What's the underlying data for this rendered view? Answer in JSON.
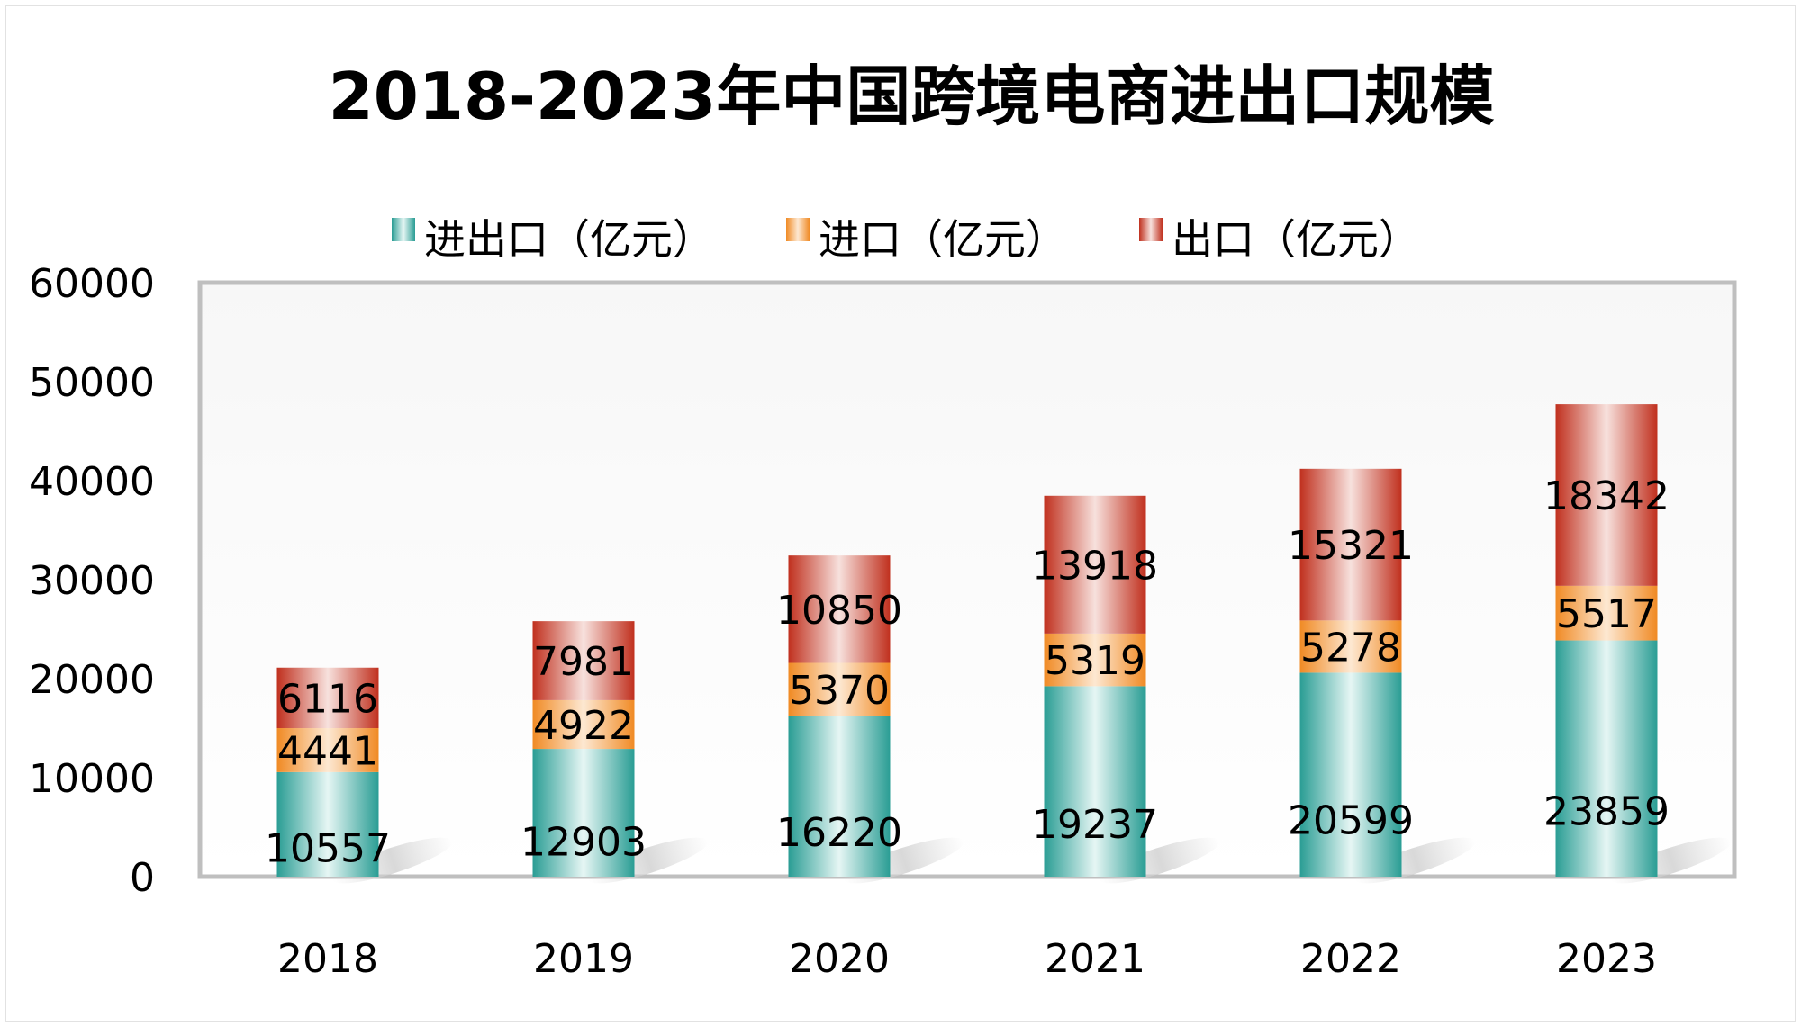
{
  "chart_data": {
    "type": "bar",
    "stacked": true,
    "title": "2018-2023年中国跨境电商进出口规模",
    "xlabel": "",
    "ylabel": "",
    "categories": [
      "2018",
      "2019",
      "2020",
      "2021",
      "2022",
      "2023"
    ],
    "ylim": [
      0,
      60000
    ],
    "yticks": [
      0,
      10000,
      20000,
      30000,
      40000,
      50000,
      60000
    ],
    "ytick_labels": [
      "0",
      "10000",
      "20000",
      "30000",
      "40000",
      "50000",
      "60000"
    ],
    "grid": false,
    "legend_position": "top",
    "series": [
      {
        "name": "进出口（亿元）",
        "color": "#2a9d94",
        "values": [
          10557,
          12903,
          16220,
          19237,
          20599,
          23859
        ]
      },
      {
        "name": "进口（亿元）",
        "color": "#f08a24",
        "values": [
          4441,
          4922,
          5370,
          5319,
          5278,
          5517
        ]
      },
      {
        "name": "出口（亿元）",
        "color": "#c0301e",
        "values": [
          6116,
          7981,
          10850,
          13918,
          15321,
          18342
        ]
      }
    ]
  }
}
